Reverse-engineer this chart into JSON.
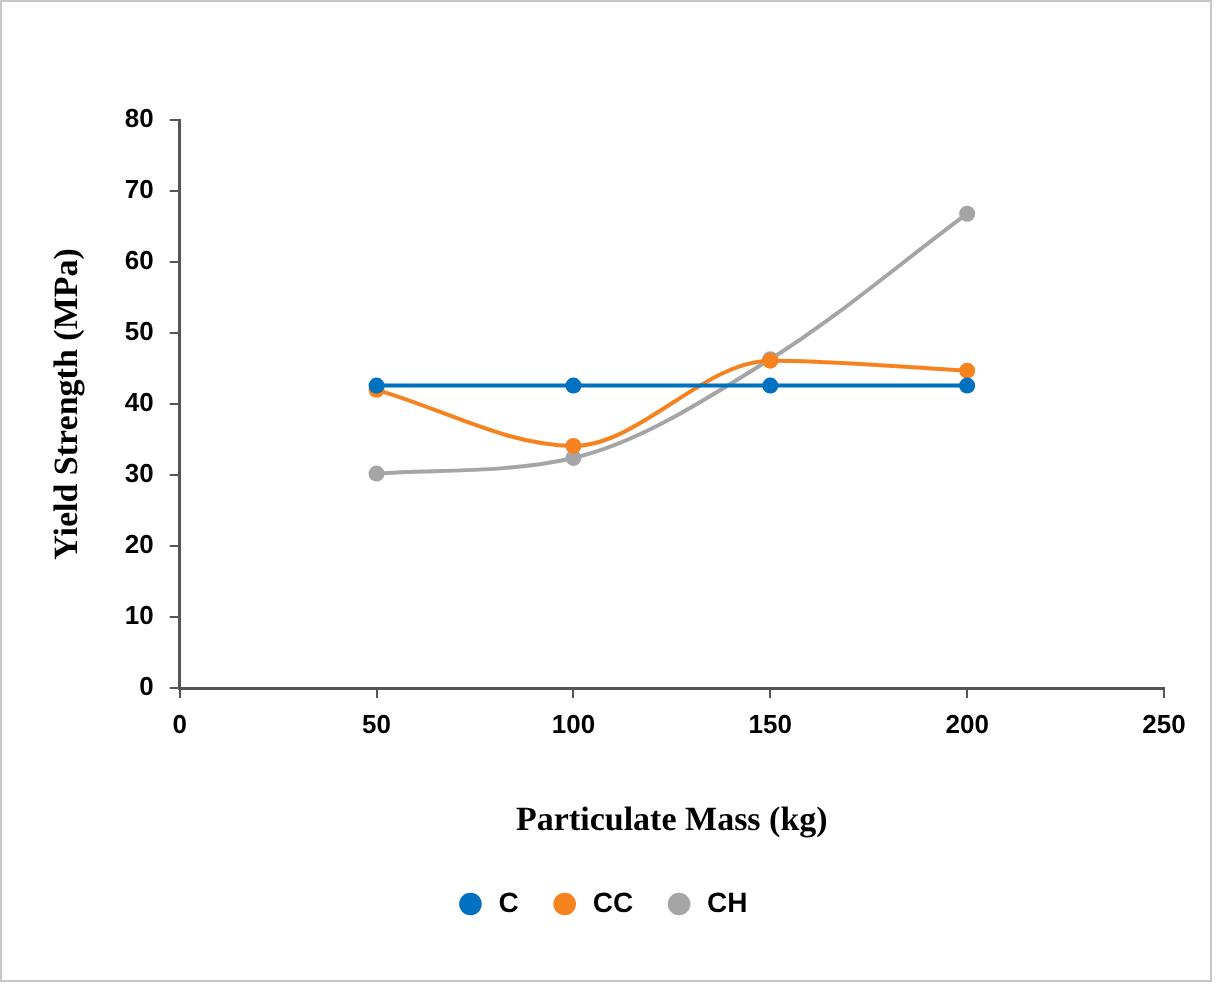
{
  "chart_data": {
    "type": "line",
    "xlabel": "Particulate Mass (kg)",
    "ylabel": "Yield Strength (MPa)",
    "x": [
      50,
      100,
      150,
      200
    ],
    "series": [
      {
        "name": "C",
        "color": "#0070c0",
        "values": [
          42.6,
          42.6,
          42.6,
          42.6
        ]
      },
      {
        "name": "CC",
        "color": "#f5821f",
        "values": [
          42.0,
          34.1,
          46.1,
          44.7
        ]
      },
      {
        "name": "CH",
        "color": "#a5a5a5",
        "values": [
          30.2,
          32.4,
          46.3,
          66.8
        ]
      }
    ],
    "xlim": [
      0,
      250
    ],
    "xticks": [
      0,
      50,
      100,
      150,
      200,
      250
    ],
    "ylim": [
      0,
      80
    ],
    "yticks": [
      0,
      10,
      20,
      30,
      40,
      50,
      60,
      70,
      80
    ],
    "grid": false,
    "legend": "bottom",
    "marker": "circle",
    "line_style": "solid"
  }
}
